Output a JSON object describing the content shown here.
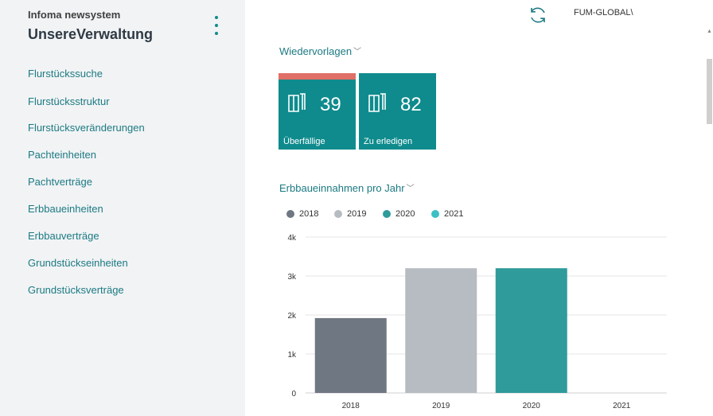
{
  "sidebar": {
    "company_small": "Infoma newsystem",
    "company_big": "UnsereVerwaltung",
    "items": [
      {
        "label": "Flurstückssuche"
      },
      {
        "label": "Flurstücksstruktur"
      },
      {
        "label": "Flurstücksveränderungen"
      },
      {
        "label": "Pachteinheiten"
      },
      {
        "label": "Pachtverträge"
      },
      {
        "label": "Erbbaueinheiten"
      },
      {
        "label": "Erbbauverträge"
      },
      {
        "label": "Grundstückseinheiten"
      },
      {
        "label": "Grundstücksverträge"
      }
    ]
  },
  "header": {
    "user": "FUM-GLOBAL\\",
    "refresh_icon": "refresh-icon"
  },
  "wiedervorlagen": {
    "title": "Wiedervorlagen",
    "tiles": [
      {
        "count": "39",
        "label": "Überfällige",
        "icon": "document-icon",
        "alert_color": "#e06f67"
      },
      {
        "count": "82",
        "label": "Zu erledigen",
        "icon": "document-icon"
      }
    ],
    "tile_color": "#0f8b8d"
  },
  "chart_section": {
    "title": "Erbbaueinnahmen pro Jahr"
  },
  "chart_data": {
    "type": "bar",
    "title": "",
    "xlabel": "",
    "ylabel": "",
    "categories": [
      "2018",
      "2019",
      "2020",
      "2021"
    ],
    "values": [
      1920,
      3200,
      3200,
      0
    ],
    "colors": [
      "#6f7782",
      "#b7bcc3",
      "#2f9b9b",
      "#3dbfc4"
    ],
    "ylim": [
      0,
      4000
    ],
    "yticks": [
      0,
      1000,
      2000,
      3000,
      4000
    ],
    "ytick_labels": [
      "0",
      "1k",
      "2k",
      "3k",
      "4k"
    ],
    "legend": [
      {
        "name": "2018",
        "color": "#6f7782"
      },
      {
        "name": "2019",
        "color": "#b7bcc3"
      },
      {
        "name": "2020",
        "color": "#2f9b9b"
      },
      {
        "name": "2021",
        "color": "#3dbfc4"
      }
    ],
    "legend_position": "top-left",
    "grid": true
  }
}
